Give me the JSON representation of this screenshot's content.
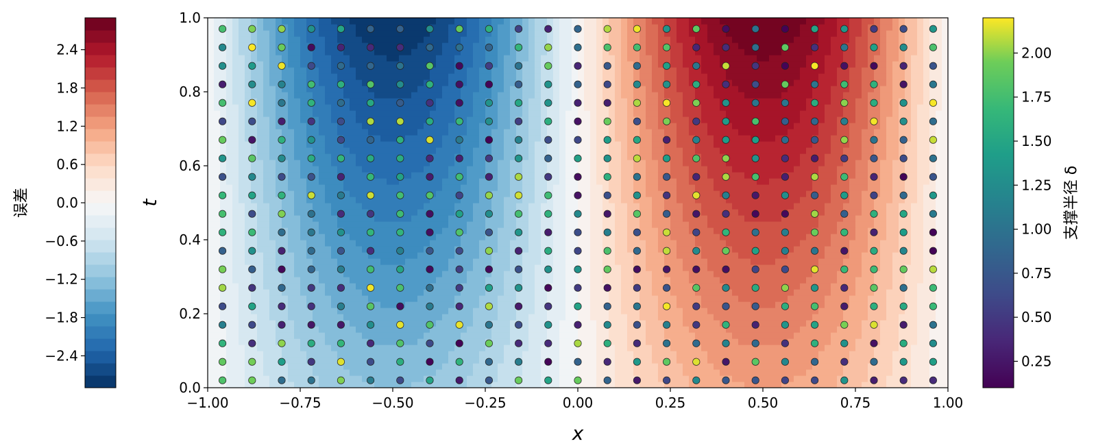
{
  "chart_data": {
    "type": "contour",
    "xlabel": "x",
    "ylabel": "t",
    "xlim": [
      -1.0,
      1.0
    ],
    "ylim": [
      0.0,
      1.0
    ],
    "x_ticks": [
      "−1.00",
      "−0.75",
      "−0.50",
      "−0.25",
      "0.00",
      "0.25",
      "0.50",
      "0.75",
      "1.00"
    ],
    "x_tick_values": [
      -1.0,
      -0.75,
      -0.5,
      -0.25,
      0.0,
      0.25,
      0.5,
      0.75,
      1.0
    ],
    "y_ticks": [
      "0.0",
      "0.2",
      "0.4",
      "0.6",
      "0.8",
      "1.0"
    ],
    "y_tick_values": [
      0.0,
      0.2,
      0.4,
      0.6,
      0.8,
      1.0
    ],
    "field": {
      "description": "error field approx 2.9*sin(pi*x)*(0.4+0.6*t)",
      "colormap": "RdBu_r",
      "levels_min": -2.9,
      "levels_max": 2.9,
      "n_levels": 30
    },
    "error_colorbar": {
      "label": "误差",
      "ticks": [
        "2.4",
        "1.8",
        "1.2",
        "0.6",
        "0.0",
        "−0.6",
        "−1.2",
        "−1.8",
        "−2.4"
      ],
      "tick_values": [
        2.4,
        1.8,
        1.2,
        0.6,
        0.0,
        -0.6,
        -1.2,
        -1.8,
        -2.4
      ],
      "range": [
        -2.9,
        2.9
      ]
    },
    "delta_colorbar": {
      "label": "支撑半径 δ",
      "colormap": "viridis",
      "ticks": [
        "2.00",
        "1.75",
        "1.50",
        "1.25",
        "1.00",
        "0.75",
        "0.50",
        "0.25"
      ],
      "tick_values": [
        2.0,
        1.75,
        1.5,
        1.25,
        1.0,
        0.75,
        0.5,
        0.25
      ],
      "range": [
        0.1,
        2.2
      ]
    },
    "scatter": {
      "x": [
        -0.96,
        -0.88,
        -0.8,
        -0.72,
        -0.64,
        -0.56,
        -0.48,
        -0.4,
        -0.32,
        -0.24,
        -0.16,
        -0.08,
        0.0,
        0.08,
        0.16,
        0.24,
        0.32,
        0.4,
        0.48,
        0.56,
        0.64,
        0.72,
        0.8,
        0.88,
        0.96
      ],
      "t": [
        0.02,
        0.07,
        0.12,
        0.17,
        0.22,
        0.27,
        0.32,
        0.37,
        0.42,
        0.47,
        0.52,
        0.57,
        0.62,
        0.67,
        0.72,
        0.77,
        0.82,
        0.87,
        0.92,
        0.97
      ],
      "delta_min": 0.1,
      "delta_max": 2.2,
      "note": "one scattered support radius delta per (x, t) grid node"
    }
  }
}
